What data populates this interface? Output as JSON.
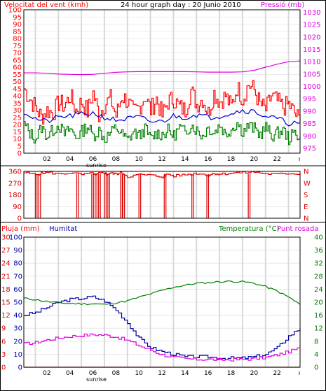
{
  "colors": {
    "wind": "#ff0000",
    "gust": "#ff0000",
    "avg_wind": "#0000cc",
    "wind_low": "#008000",
    "pressure": "#e000e0",
    "direction": "#dd0000",
    "humidity": "#0000aa",
    "temperature": "#008000",
    "dewpoint": "#e000e0",
    "rain": "#dd0000",
    "grid": "#d9d9d9",
    "frame": "#000000"
  },
  "chart_data": [
    {
      "type": "line",
      "title": "24 hour graph day : 20 Junio 2010",
      "ylabel_left": "Velocitat del vent (kmh)",
      "ylabel_right": "Pressió (mb)",
      "x_ticks": [
        "02",
        "04",
        "06",
        "08",
        "10",
        "12",
        "14",
        "16",
        "18",
        "20",
        "22"
      ],
      "sunrise_label": "sunrise",
      "sunrise_hour": 6.3,
      "xlim": [
        0,
        24
      ],
      "y_ticks_left": [
        "0",
        "5",
        "10",
        "15",
        "20",
        "25",
        "30",
        "35",
        "40",
        "45",
        "50",
        "55",
        "60",
        "65",
        "70",
        "75",
        "80",
        "85",
        "90",
        "95",
        "100"
      ],
      "ylim_left": [
        0,
        100
      ],
      "y_ticks_right": [
        "975",
        "980",
        "985",
        "990",
        "995",
        "1000",
        "1005",
        "1010",
        "1015",
        "1020",
        "1025",
        "1030"
      ],
      "ylim_right": [
        973,
        1031
      ],
      "series": [
        {
          "key": "gust",
          "x": [
            0,
            0.5,
            1,
            1.5,
            2,
            2.5,
            3,
            3.5,
            4,
            4.5,
            5,
            5.5,
            6,
            6.5,
            7,
            7.5,
            8,
            8.5,
            9,
            9.5,
            10,
            10.5,
            11,
            11.5,
            12,
            12.5,
            13,
            13.5,
            14,
            14.5,
            15,
            15.5,
            16,
            16.5,
            17,
            17.5,
            18,
            18.5,
            19,
            19.5,
            20,
            20.5,
            21,
            21.5,
            22,
            22.5,
            23,
            23.5,
            24
          ],
          "values": [
            45,
            38,
            32,
            25,
            30,
            28,
            35,
            33,
            40,
            30,
            36,
            29,
            42,
            27,
            34,
            38,
            26,
            40,
            36,
            28,
            32,
            40,
            30,
            38,
            26,
            36,
            38,
            32,
            30,
            44,
            34,
            38,
            28,
            42,
            36,
            40,
            32,
            46,
            38,
            48,
            44,
            34,
            30,
            40,
            36,
            32,
            34,
            28,
            22
          ]
        },
        {
          "key": "avg_wind",
          "x": [
            0,
            1,
            2,
            3,
            4,
            5,
            6,
            7,
            8,
            9,
            10,
            11,
            12,
            13,
            14,
            15,
            16,
            17,
            18,
            19,
            20,
            21,
            22,
            23,
            24
          ],
          "values": [
            29,
            24,
            22,
            25,
            26,
            27,
            28,
            25,
            23,
            24,
            25,
            22,
            22,
            26,
            25,
            27,
            25,
            26,
            28,
            30,
            29,
            26,
            24,
            21,
            21
          ]
        },
        {
          "key": "wind_low",
          "x": [
            0,
            0.5,
            1,
            1.5,
            2,
            2.5,
            3,
            3.5,
            4,
            4.5,
            5,
            5.5,
            6,
            6.5,
            7,
            7.5,
            8,
            8.5,
            9,
            9.5,
            10,
            10.5,
            11,
            11.5,
            12,
            12.5,
            13,
            13.5,
            14,
            14.5,
            15,
            15.5,
            16,
            16.5,
            17,
            17.5,
            18,
            18.5,
            19,
            19.5,
            20,
            20.5,
            21,
            21.5,
            22,
            22.5,
            23,
            23.5,
            24
          ],
          "values": [
            20,
            14,
            10,
            18,
            12,
            16,
            20,
            13,
            17,
            11,
            15,
            19,
            12,
            16,
            10,
            14,
            18,
            13,
            9,
            15,
            12,
            17,
            10,
            14,
            13,
            16,
            12,
            18,
            14,
            20,
            16,
            12,
            18,
            14,
            20,
            13,
            17,
            21,
            15,
            19,
            17,
            13,
            18,
            12,
            14,
            16,
            10,
            14,
            12
          ]
        },
        {
          "key": "pressure",
          "x": [
            0,
            1,
            2,
            3,
            4,
            5,
            6,
            7,
            8,
            9,
            10,
            11,
            12,
            13,
            14,
            15,
            16,
            17,
            18,
            19,
            20,
            21,
            22,
            23,
            24
          ],
          "values": [
            1005.5,
            1005.5,
            1005.3,
            1005.0,
            1004.9,
            1004.8,
            1004.9,
            1005.3,
            1005.7,
            1005.9,
            1006.0,
            1006.0,
            1006.0,
            1006.0,
            1006.0,
            1005.9,
            1005.8,
            1005.8,
            1005.8,
            1005.9,
            1006.5,
            1007.8,
            1009.0,
            1010.0,
            1010.3
          ]
        }
      ]
    },
    {
      "type": "line",
      "ylabel_left": "",
      "y_ticks_left": [
        "0",
        "90",
        "180",
        "270",
        "360"
      ],
      "ylim": [
        0,
        360
      ],
      "compass": [
        "N",
        "W",
        "S",
        "E",
        "N"
      ],
      "series": [
        {
          "key": "direction",
          "x": [
            0,
            1,
            1.5,
            2,
            3,
            4,
            5,
            6,
            6.2,
            6.5,
            7,
            7.2,
            7.5,
            8,
            8.5,
            9,
            10,
            11,
            12,
            12.5,
            13,
            14,
            15,
            16,
            16.5,
            17,
            18,
            19,
            20,
            21,
            22,
            23,
            24
          ],
          "values": [
            350,
            335,
            345,
            352,
            340,
            348,
            336,
            345,
            330,
            344,
            350,
            338,
            346,
            340,
            350,
            320,
            335,
            330,
            318,
            340,
            325,
            335,
            345,
            330,
            345,
            338,
            348,
            350,
            355,
            342,
            338,
            345,
            340
          ],
          "drops_hours": [
            1.0,
            1.3,
            4.6,
            5.9,
            6.2,
            6.5,
            7.0,
            7.3,
            8.4,
            8.6,
            10.0,
            12.2,
            14.6,
            15.9,
            19.5
          ]
        }
      ]
    },
    {
      "type": "line",
      "ylabel_left": "Pluja (mm)",
      "ylabel_mid": "Humitat",
      "ylabel_right_a": "Temperatura (°C)",
      "ylabel_right_b": "Punt rosada",
      "y_ticks_left_rain": [
        "0",
        "3",
        "6",
        "9",
        "12",
        "15",
        "18",
        "21",
        "24",
        "27",
        "30"
      ],
      "y_ticks_left_hum": [
        "0",
        "10",
        "20",
        "30",
        "40",
        "50",
        "60",
        "70",
        "80",
        "90",
        "100"
      ],
      "ylim_left": [
        0,
        100
      ],
      "y_ticks_right": [
        "0",
        "4",
        "8",
        "12",
        "16",
        "20",
        "24",
        "28",
        "32",
        "36",
        "40"
      ],
      "ylim_right": [
        0,
        40
      ],
      "series": [
        {
          "key": "humidity",
          "x": [
            0,
            1,
            2,
            3,
            4,
            5,
            6,
            7,
            8,
            9,
            10,
            11,
            12,
            13,
            14,
            15,
            16,
            17,
            18,
            19,
            20,
            21,
            22,
            23,
            24
          ],
          "values": [
            40,
            42,
            46,
            50,
            52,
            53,
            54,
            51,
            44,
            34,
            22,
            15,
            12,
            10,
            8,
            8,
            8,
            7,
            7,
            7,
            8,
            10,
            15,
            24,
            30
          ]
        },
        {
          "key": "temperature",
          "x": [
            0,
            1,
            2,
            3,
            4,
            5,
            6,
            7,
            8,
            9,
            10,
            11,
            12,
            13,
            14,
            15,
            16,
            17,
            18,
            19,
            20,
            21,
            22,
            23,
            24
          ],
          "values": [
            21.2,
            20.8,
            20.2,
            19.8,
            19.6,
            19.5,
            19.5,
            19.3,
            19.8,
            20.4,
            21.5,
            22.5,
            23.6,
            24.6,
            25.2,
            25.8,
            26.0,
            26.3,
            26.4,
            26.3,
            25.8,
            24.8,
            23.4,
            21.6,
            19.3
          ]
        },
        {
          "key": "dewpoint",
          "x": [
            0,
            1,
            2,
            3,
            4,
            5,
            6,
            7,
            8,
            9,
            10,
            11,
            12,
            13,
            14,
            15,
            16,
            17,
            18,
            19,
            20,
            21,
            22,
            23,
            24
          ],
          "values": [
            7.2,
            7.6,
            8.4,
            9.0,
            9.5,
            9.8,
            10.0,
            9.9,
            9.3,
            8.2,
            6.6,
            5.2,
            3.8,
            3.0,
            2.6,
            2.4,
            2.4,
            2.3,
            2.3,
            2.4,
            2.6,
            3.0,
            3.8,
            4.8,
            6.0
          ]
        },
        {
          "key": "rain",
          "x": [
            0,
            24
          ],
          "values": [
            0,
            0
          ]
        }
      ]
    }
  ]
}
